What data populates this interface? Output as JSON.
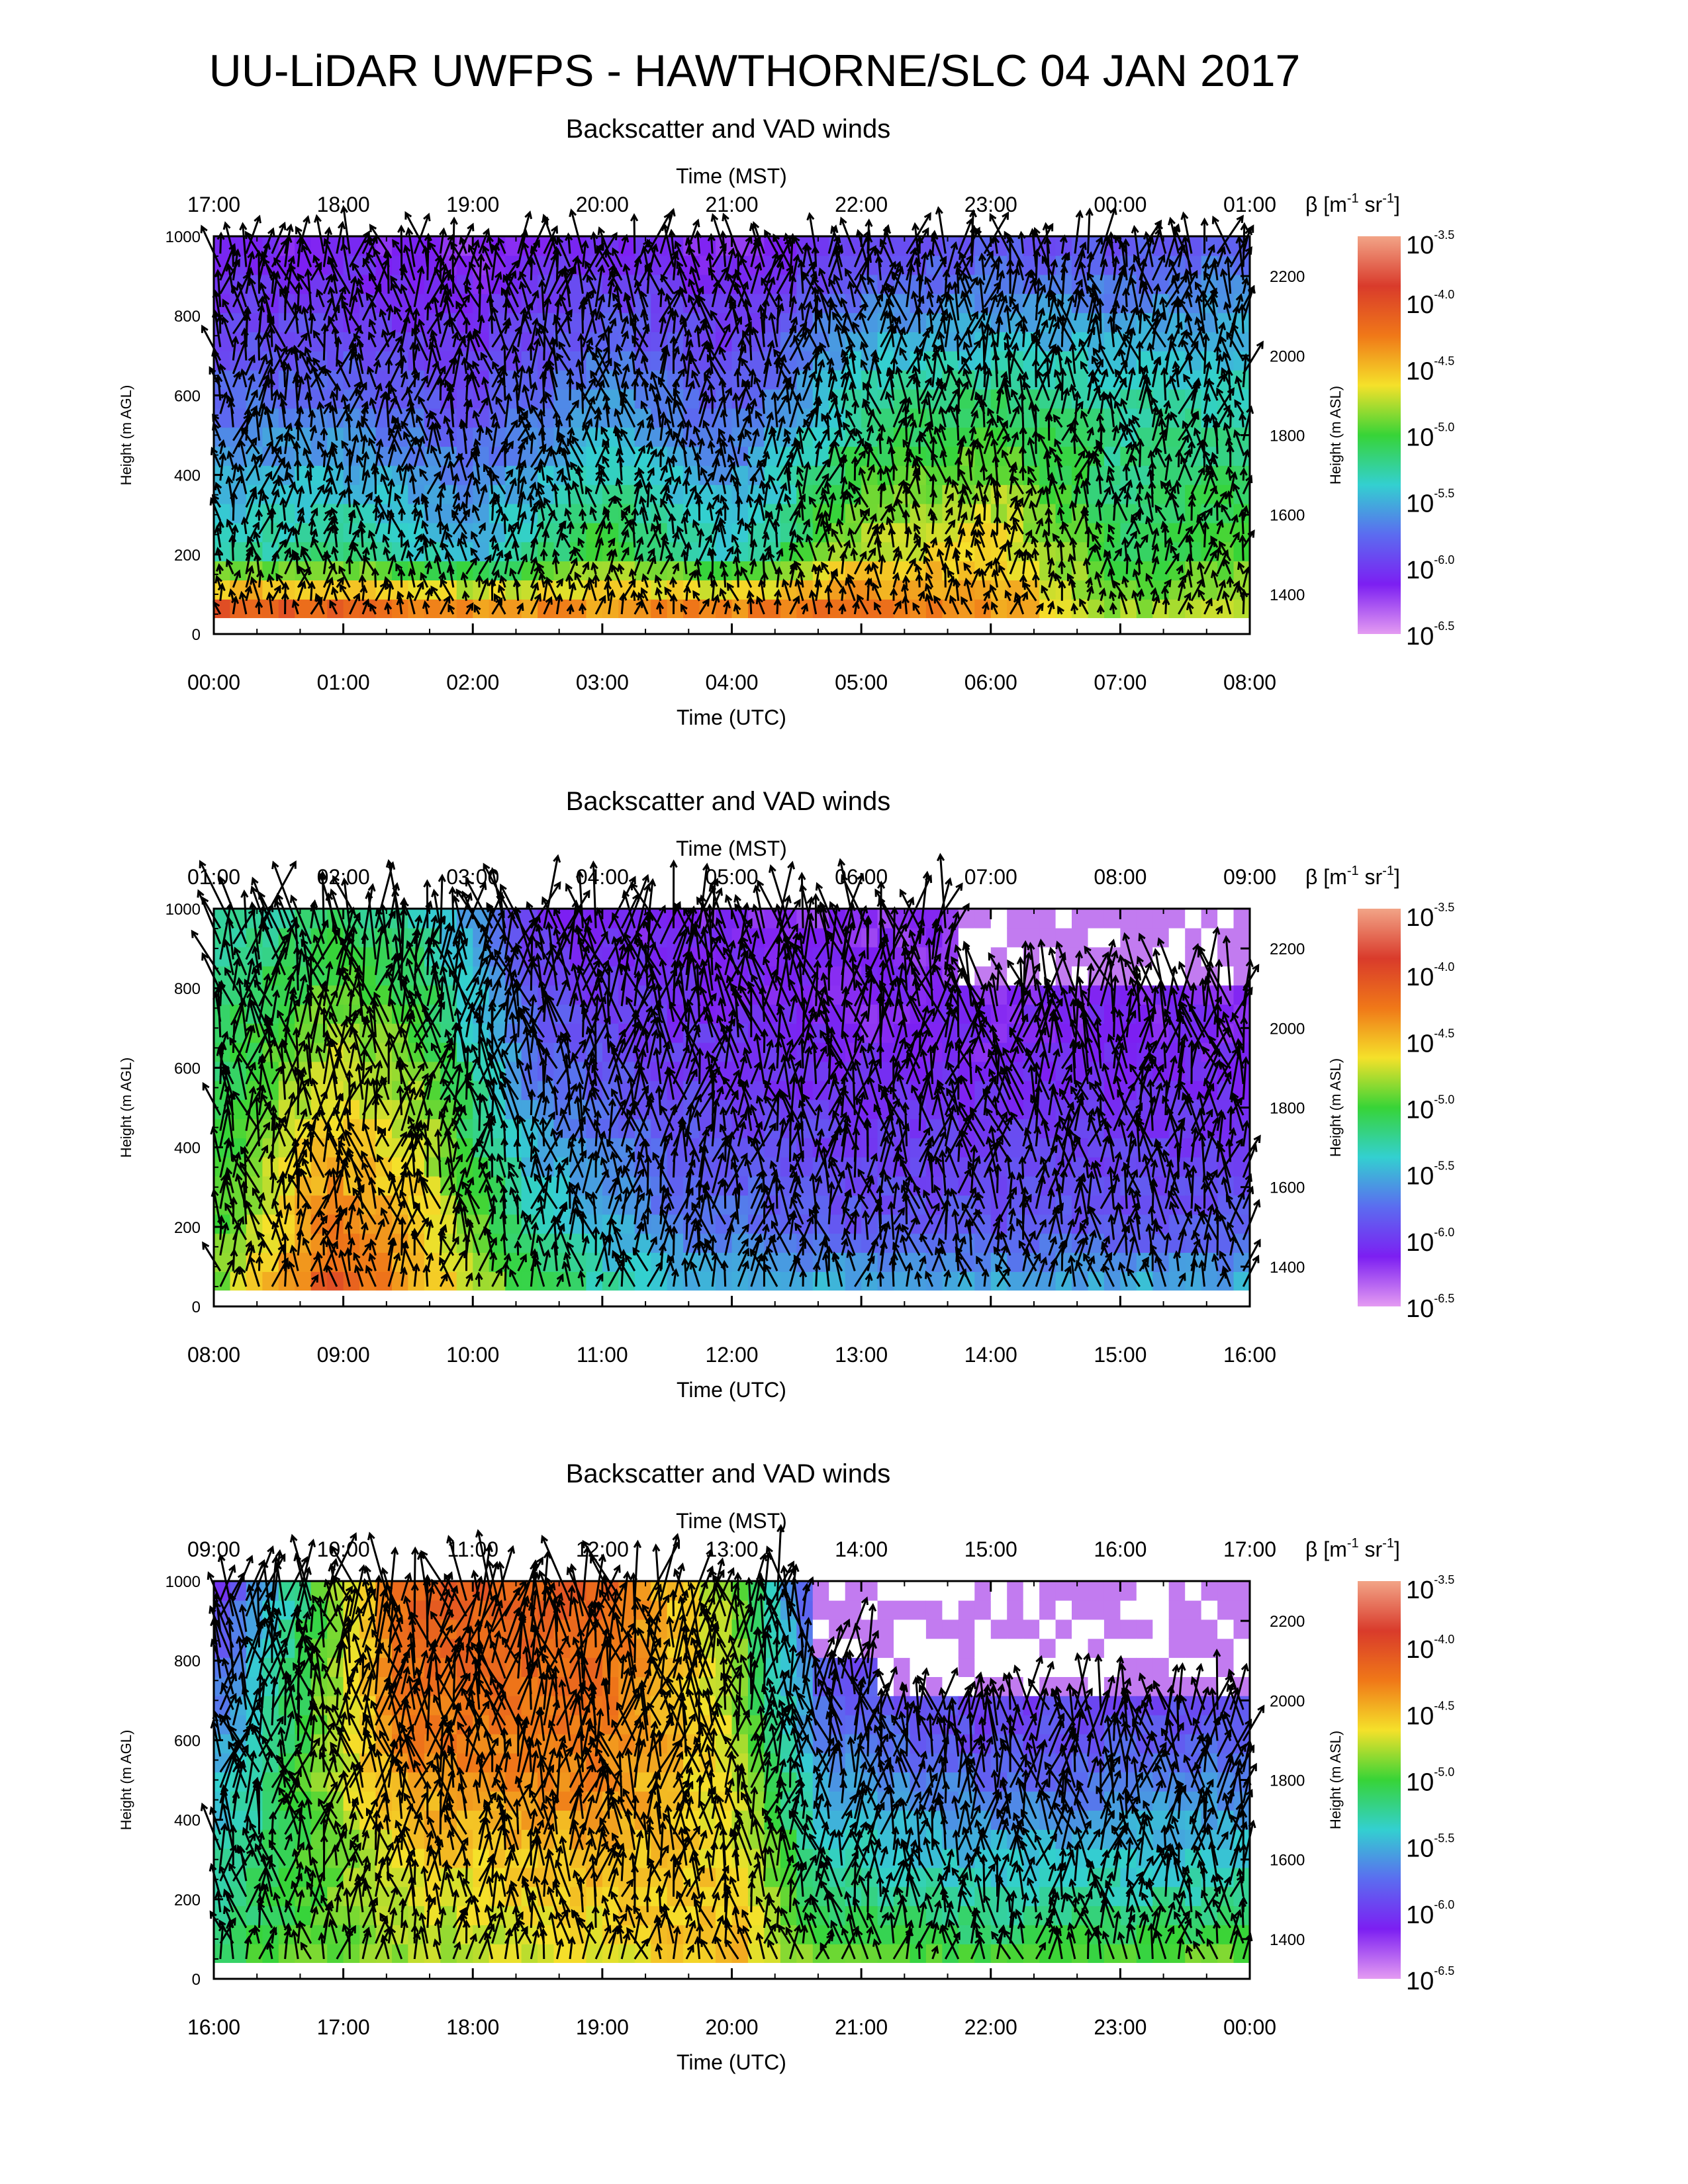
{
  "title": "UU-LiDAR UWFPS - HAWTHORNE/SLC 04 JAN 2017",
  "colorbar": {
    "label_prefix": "β [m",
    "label_exp1": "-1",
    "label_mid": " sr",
    "label_exp2": "-1",
    "label_suffix": "]",
    "tick_base": "10",
    "tick_exponents": [
      "-3.5",
      "-4.0",
      "-4.5",
      "-5.0",
      "-5.5",
      "-6.0",
      "-6.5"
    ],
    "colors": [
      "#f2a487",
      "#d93b2b",
      "#f07818",
      "#f5e12a",
      "#37d437",
      "#33d0d0",
      "#5b6cf0",
      "#7c1ff2",
      "#e49bf2"
    ]
  },
  "chart_data": [
    {
      "type": "heatmap",
      "title": "Backscatter and VAD winds",
      "top_axis_label": "Time (MST)",
      "top_ticks": [
        "17:00",
        "18:00",
        "19:00",
        "20:00",
        "21:00",
        "22:00",
        "23:00",
        "00:00",
        "01:00"
      ],
      "xlabel": "Time (UTC)",
      "x_ticks": [
        "00:00",
        "01:00",
        "02:00",
        "03:00",
        "04:00",
        "05:00",
        "06:00",
        "07:00",
        "08:00"
      ],
      "xlim": [
        0,
        8
      ],
      "ylabel": "Height (m AGL)",
      "ylim": [
        0,
        1000
      ],
      "y_ticks": [
        0,
        200,
        400,
        600,
        800,
        1000
      ],
      "y2label": "Height (m ASL)",
      "y2_ticks": [
        1400,
        1600,
        1800,
        2000,
        2200
      ],
      "y2lim": [
        1300,
        2300
      ],
      "profile": [
        {
          "t": 0.0,
          "stops": [
            [
              0.0,
              0.4
            ],
            [
              0.6,
              0.55
            ],
            [
              0.75,
              0.75
            ],
            [
              0.88,
              0.85
            ]
          ]
        },
        {
          "t": 1.0,
          "stops": [
            [
              0.05,
              0.4
            ],
            [
              0.55,
              0.55
            ],
            [
              0.75,
              0.72
            ],
            [
              0.88,
              0.85
            ]
          ]
        },
        {
          "t": 2.0,
          "stops": [
            [
              0.1,
              0.4
            ],
            [
              0.65,
              0.55
            ],
            [
              0.8,
              0.75
            ],
            [
              0.9,
              0.85
            ]
          ]
        },
        {
          "t": 3.0,
          "stops": [
            [
              0.2,
              0.4
            ],
            [
              0.48,
              0.55
            ],
            [
              0.7,
              0.75
            ],
            [
              0.85,
              0.85
            ]
          ]
        },
        {
          "t": 4.0,
          "stops": [
            [
              0.1,
              0.4
            ],
            [
              0.62,
              0.55
            ],
            [
              0.78,
              0.75
            ],
            [
              0.9,
              0.85
            ]
          ]
        },
        {
          "t": 5.0,
          "stops": [
            [
              0.15,
              0.4
            ],
            [
              0.4,
              0.55
            ],
            [
              0.6,
              0.7
            ],
            [
              0.82,
              0.85
            ]
          ]
        },
        {
          "t": 6.0,
          "stops": [
            [
              0.25,
              0.4
            ],
            [
              0.35,
              0.55
            ],
            [
              0.55,
              0.75
            ],
            [
              0.8,
              0.85
            ]
          ]
        },
        {
          "t": 7.0,
          "stops": [
            [
              0.4,
              0.4
            ],
            [
              0.52,
              0.55
            ],
            [
              0.6,
              0.75
            ],
            [
              0.8,
              0.85
            ]
          ]
        },
        {
          "t": 8.0,
          "stops": [
            [
              0.4,
              0.4
            ],
            [
              0.48,
              0.55
            ],
            [
              0.6,
              0.72
            ],
            [
              0.75,
              0.8
            ]
          ]
        }
      ],
      "blanks": [],
      "wind_rows": 28,
      "wind_step_min": 6,
      "wind_scale": 1.0
    },
    {
      "type": "heatmap",
      "title": "Backscatter and VAD winds",
      "top_axis_label": "Time (MST)",
      "top_ticks": [
        "01:00",
        "02:00",
        "03:00",
        "04:00",
        "05:00",
        "06:00",
        "07:00",
        "08:00",
        "09:00"
      ],
      "xlabel": "Time (UTC)",
      "x_ticks": [
        "08:00",
        "09:00",
        "10:00",
        "11:00",
        "12:00",
        "13:00",
        "14:00",
        "15:00",
        "16:00"
      ],
      "xlim": [
        8,
        16
      ],
      "ylabel": "Height (m AGL)",
      "ylim": [
        0,
        1000
      ],
      "y_ticks": [
        0,
        200,
        400,
        600,
        800,
        1000
      ],
      "y2label": "Height (m ASL)",
      "y2_ticks": [
        1400,
        1600,
        1800,
        2000,
        2200
      ],
      "y2lim": [
        1300,
        2300
      ],
      "profile": [
        {
          "t": 8.0,
          "stops": [
            [
              0.45,
              0.45
            ],
            [
              0.5,
              0.6
            ],
            [
              0.55,
              0.75
            ],
            [
              0.6,
              0.9
            ]
          ]
        },
        {
          "t": 8.9,
          "stops": [
            [
              0.15,
              0.4
            ],
            [
              0.25,
              0.6
            ],
            [
              0.4,
              0.8
            ],
            [
              0.55,
              0.95
            ]
          ]
        },
        {
          "t": 9.6,
          "stops": [
            [
              0.3,
              0.4
            ],
            [
              0.35,
              0.6
            ],
            [
              0.45,
              0.8
            ],
            [
              0.6,
              0.95
            ]
          ]
        },
        {
          "t": 10.5,
          "stops": [
            [
              0.5,
              0.4
            ],
            [
              0.6,
              0.6
            ],
            [
              0.75,
              0.8
            ],
            [
              0.85,
              0.95
            ]
          ]
        },
        {
          "t": 11.5,
          "stops": [
            [
              0.62,
              0.4
            ],
            [
              0.72,
              0.6
            ],
            [
              0.82,
              0.8
            ],
            [
              0.88,
              0.95
            ]
          ]
        },
        {
          "t": 13.0,
          "stops": [
            [
              0.62,
              0.4
            ],
            [
              0.78,
              0.6
            ],
            [
              0.86,
              0.8
            ],
            [
              0.9,
              0.95
            ]
          ]
        },
        {
          "t": 16.0,
          "stops": [
            [
              0.62,
              0.4
            ],
            [
              0.78,
              0.6
            ],
            [
              0.86,
              0.8
            ],
            [
              0.9,
              0.95
            ]
          ]
        }
      ],
      "blanks": [
        [
          13.7,
          16.0,
          830,
          1000
        ]
      ],
      "wind_rows": 24,
      "wind_step_min": 6,
      "wind_scale": 1.6
    },
    {
      "type": "heatmap",
      "title": "Backscatter and VAD winds",
      "top_axis_label": "Time (MST)",
      "top_ticks": [
        "09:00",
        "10:00",
        "11:00",
        "12:00",
        "13:00",
        "14:00",
        "15:00",
        "16:00",
        "17:00"
      ],
      "xlabel": "Time (UTC)",
      "x_ticks": [
        "16:00",
        "17:00",
        "18:00",
        "19:00",
        "20:00",
        "21:00",
        "22:00",
        "23:00",
        "00:00"
      ],
      "xlim": [
        16,
        24
      ],
      "ylabel": "Height (m AGL)",
      "ylim": [
        0,
        1000
      ],
      "y_ticks": [
        0,
        200,
        400,
        600,
        800,
        1000
      ],
      "y2label": "Height (m ASL)",
      "y2_ticks": [
        1400,
        1600,
        1800,
        2000,
        2200
      ],
      "y2lim": [
        1300,
        2300
      ],
      "profile": [
        {
          "t": 16.0,
          "stops": [
            [
              0.5,
              0.4
            ],
            [
              0.58,
              0.6
            ],
            [
              0.7,
              0.8
            ],
            [
              0.85,
              0.95
            ]
          ]
        },
        {
          "t": 17.5,
          "stops": [
            [
              0.45,
              0.4
            ],
            [
              0.4,
              0.6
            ],
            [
              0.25,
              0.8
            ],
            [
              0.2,
              0.95
            ]
          ]
        },
        {
          "t": 19.0,
          "stops": [
            [
              0.4,
              0.4
            ],
            [
              0.35,
              0.6
            ],
            [
              0.25,
              0.8
            ],
            [
              0.2,
              0.95
            ]
          ]
        },
        {
          "t": 20.0,
          "stops": [
            [
              0.3,
              0.4
            ],
            [
              0.35,
              0.6
            ],
            [
              0.4,
              0.8
            ],
            [
              0.45,
              0.95
            ]
          ]
        },
        {
          "t": 20.7,
          "stops": [
            [
              0.45,
              0.4
            ],
            [
              0.55,
              0.6
            ],
            [
              0.72,
              0.8
            ],
            [
              0.85,
              0.95
            ]
          ]
        },
        {
          "t": 22.0,
          "stops": [
            [
              0.45,
              0.4
            ],
            [
              0.6,
              0.6
            ],
            [
              0.8,
              0.8
            ],
            [
              0.9,
              0.95
            ]
          ]
        },
        {
          "t": 24.0,
          "stops": [
            [
              0.42,
              0.4
            ],
            [
              0.58,
              0.6
            ],
            [
              0.75,
              0.8
            ],
            [
              0.88,
              0.95
            ]
          ]
        }
      ],
      "blanks": [
        [
          20.6,
          24.0,
          820,
          1000
        ],
        [
          21.1,
          24.0,
          700,
          820
        ]
      ],
      "wind_rows": 24,
      "wind_step_min": 6,
      "wind_scale": 1.6
    }
  ]
}
